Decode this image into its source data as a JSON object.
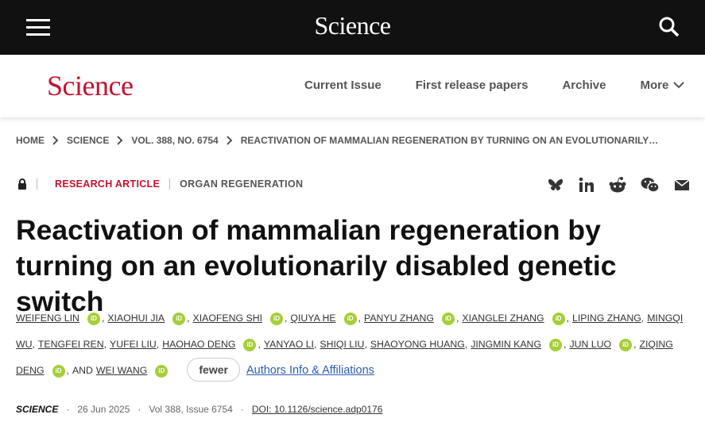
{
  "top_bar": {
    "logo": "Science"
  },
  "nav": {
    "logo": "Science",
    "links": [
      "Current Issue",
      "First release papers",
      "Archive",
      "More"
    ]
  },
  "breadcrumb": [
    "HOME",
    "SCIENCE",
    "VOL. 388, NO. 6754",
    "REACTIVATION OF MAMMALIAN REGENERATION BY TURNING ON AN EVOLUTIONARILY…"
  ],
  "article": {
    "type": "RESEARCH ARTICLE",
    "section": "ORGAN REGENERATION",
    "title": "Reactivation of mammalian regeneration by turning on an evolutionarily disabled genetic switch",
    "authors": {
      "separator": ",",
      "orcid_label": "iD",
      "and_word": "AND",
      "list": [
        {
          "name": "WEIFENG LIN",
          "orcid": true
        },
        {
          "name": "XIAOHUI JIA",
          "orcid": true
        },
        {
          "name": "XIAOFENG SHI",
          "orcid": true
        },
        {
          "name": "QIUYA HE",
          "orcid": true
        },
        {
          "name": "PANYU ZHANG",
          "orcid": true
        },
        {
          "name": "XIANGLEI ZHANG",
          "orcid": true
        },
        {
          "name": "LIPING ZHANG",
          "orcid": false
        },
        {
          "name": "MINGQI WU",
          "orcid": false
        },
        {
          "name": "TENGFEI REN",
          "orcid": false
        },
        {
          "name": "YUFEI LIU",
          "orcid": false
        },
        {
          "name": "HAOHAO DENG",
          "orcid": true
        },
        {
          "name": "YANYAO LI",
          "orcid": false
        },
        {
          "name": "SHIQI LIU",
          "orcid": false
        },
        {
          "name": "SHAOYONG HUANG",
          "orcid": false
        },
        {
          "name": "JINGMIN KANG",
          "orcid": true
        },
        {
          "name": "JUN LUO",
          "orcid": true
        },
        {
          "name": "ZIQING DENG",
          "orcid": true
        },
        {
          "name": "WEI WANG",
          "orcid": true
        }
      ]
    },
    "fewer_button": "fewer",
    "affiliations_link": "Authors Info & Affiliations",
    "meta": {
      "journal": "SCIENCE",
      "separator": "·",
      "date": "26 Jun 2025",
      "issue": "Vol 388, Issue 6754",
      "doi": "DOI: 10.1126/science.adp0176"
    }
  }
}
